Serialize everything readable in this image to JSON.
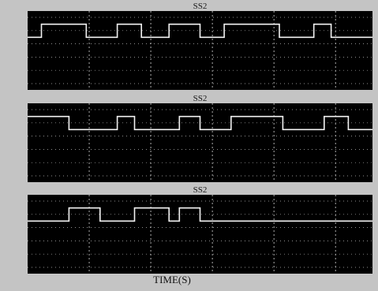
{
  "chart_data": [
    {
      "type": "line",
      "title": "SS2",
      "x": [
        0,
        0.4,
        0.4,
        1.7,
        1.7,
        2.6,
        2.6,
        3.3,
        3.3,
        4.1,
        4.1,
        5.0,
        5.0,
        5.7,
        5.7,
        7.3,
        7.3,
        8.3,
        8.3,
        8.8,
        8.8,
        10
      ],
      "y": [
        0,
        0,
        1,
        1,
        0,
        0,
        1,
        1,
        0,
        0,
        1,
        1,
        0,
        0,
        1,
        1,
        0,
        0,
        1,
        1,
        0,
        0
      ]
    },
    {
      "type": "line",
      "title": "SS2",
      "x": [
        0,
        1.2,
        1.2,
        2.6,
        2.6,
        3.1,
        3.1,
        4.4,
        4.4,
        5.0,
        5.0,
        5.9,
        5.9,
        7.4,
        7.4,
        8.6,
        8.6,
        9.3,
        9.3,
        10
      ],
      "y": [
        1,
        1,
        0,
        0,
        1,
        1,
        0,
        0,
        1,
        1,
        0,
        0,
        1,
        1,
        0,
        0,
        1,
        1,
        0,
        0
      ]
    },
    {
      "type": "line",
      "title": "SS2",
      "x": [
        0,
        1.2,
        1.2,
        2.1,
        2.1,
        3.1,
        3.1,
        4.1,
        4.1,
        4.4,
        4.4,
        5.0,
        5.0,
        10
      ],
      "y": [
        0,
        0,
        1,
        1,
        0,
        0,
        1,
        1,
        0,
        0,
        1,
        1,
        0,
        0
      ]
    }
  ],
  "xlabel": "TIME(S)",
  "xlim": [
    0,
    10
  ],
  "ylim": [
    -4,
    2
  ],
  "grid": true
}
